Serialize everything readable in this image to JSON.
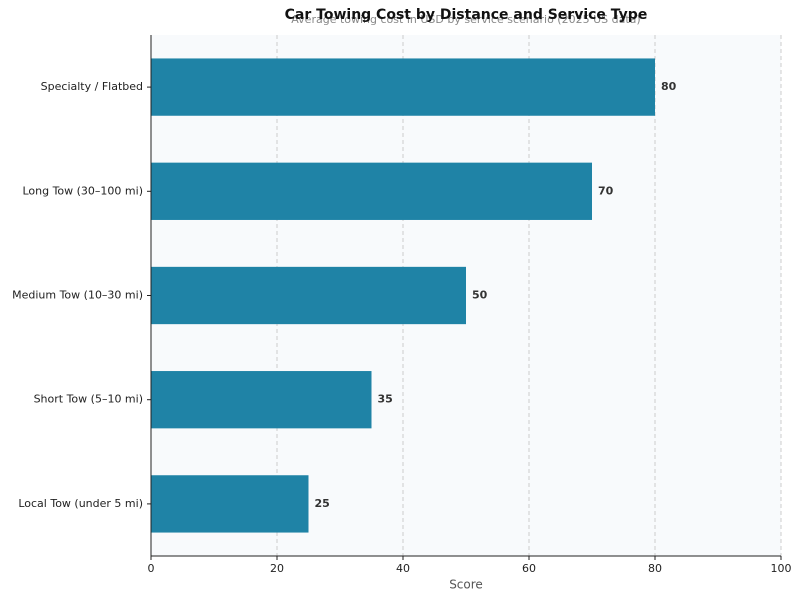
{
  "chart_data": {
    "type": "bar",
    "orientation": "horizontal",
    "title": "Car Towing Cost by Distance and Service Type",
    "subtitle": "Average towing cost in USD by service scenario (2025 US data)",
    "x_label": "Score",
    "categories": [
      "Local Tow (under 5 mi)",
      "Short Tow (5–10 mi)",
      "Medium Tow (10–30 mi)",
      "Long Tow (30–100 mi)",
      "Specialty / Flatbed"
    ],
    "values": [
      25,
      35,
      50,
      70,
      80
    ],
    "color": "#1f83a6",
    "xlim": [
      0,
      100
    ],
    "xticks": [
      0,
      20,
      40,
      60,
      80,
      100
    ],
    "grid": true
  }
}
